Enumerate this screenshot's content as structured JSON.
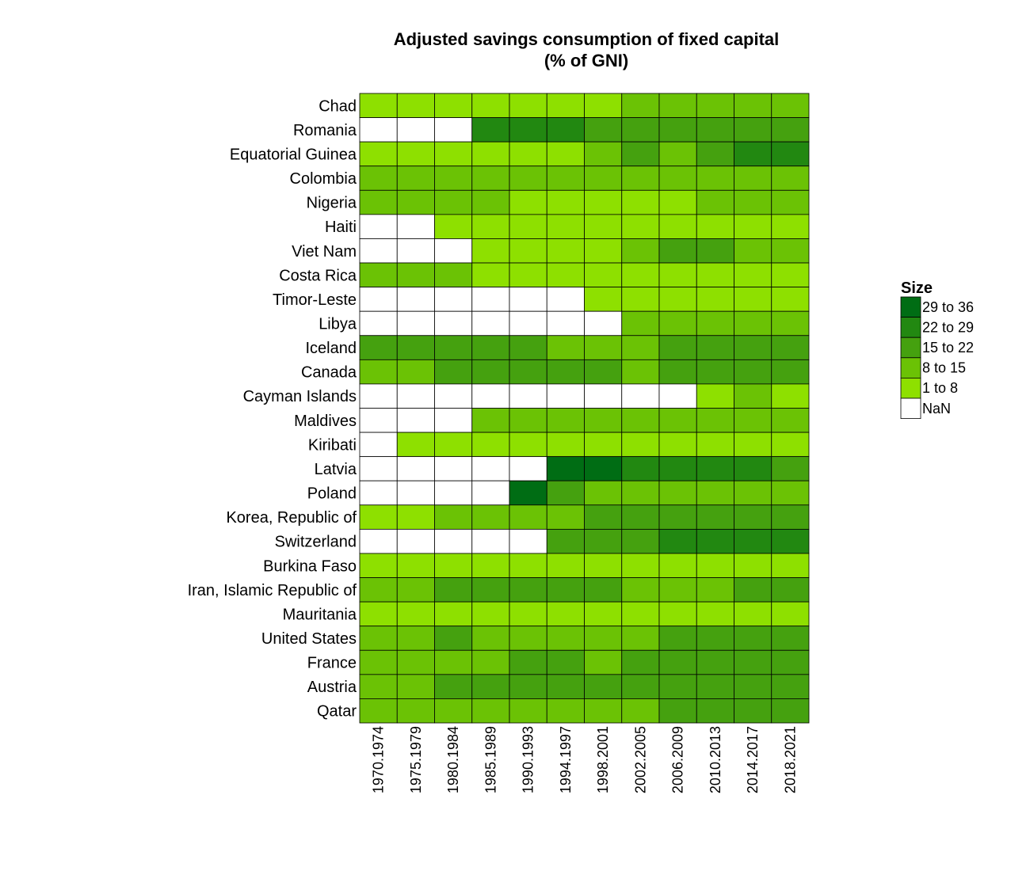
{
  "chart_data": {
    "type": "heatmap",
    "title": "Adjusted savings consumption of fixed capital",
    "subtitle": "(% of GNI)",
    "x_categories": [
      "1970.1974",
      "1975.1979",
      "1980.1984",
      "1985.1989",
      "1990.1993",
      "1994.1997",
      "1998.2001",
      "2002.2005",
      "2006.2009",
      "2010.2013",
      "2014.2017",
      "2018.2021"
    ],
    "y_categories": [
      "Chad",
      "Romania",
      "Equatorial Guinea",
      "Colombia",
      "Nigeria",
      "Haiti",
      "Viet Nam",
      "Costa Rica",
      "Timor-Leste",
      "Libya",
      "Iceland",
      "Canada",
      "Cayman Islands",
      "Maldives",
      "Kiribati",
      "Latvia",
      "Poland",
      "Korea, Republic of",
      "Switzerland",
      "Burkina Faso",
      "Iran, Islamic Republic of",
      "Mauritania",
      "United States",
      "France",
      "Austria",
      "Qatar"
    ],
    "values_class": [
      [
        1,
        1,
        1,
        1,
        1,
        1,
        1,
        2,
        2,
        2,
        2,
        2
      ],
      [
        null,
        null,
        null,
        4,
        4,
        4,
        3,
        3,
        3,
        3,
        3,
        3
      ],
      [
        1,
        1,
        1,
        1,
        1,
        1,
        2,
        3,
        2,
        3,
        4,
        4
      ],
      [
        2,
        2,
        2,
        2,
        2,
        2,
        2,
        2,
        2,
        2,
        2,
        2
      ],
      [
        2,
        2,
        2,
        2,
        1,
        1,
        1,
        1,
        1,
        2,
        2,
        2
      ],
      [
        null,
        null,
        1,
        1,
        1,
        1,
        1,
        1,
        1,
        1,
        1,
        1
      ],
      [
        null,
        null,
        null,
        1,
        1,
        1,
        1,
        2,
        3,
        3,
        2,
        2
      ],
      [
        2,
        2,
        2,
        1,
        1,
        1,
        1,
        1,
        1,
        1,
        1,
        1
      ],
      [
        null,
        null,
        null,
        null,
        null,
        null,
        1,
        1,
        1,
        1,
        1,
        1
      ],
      [
        null,
        null,
        null,
        null,
        null,
        null,
        null,
        2,
        2,
        2,
        2,
        2
      ],
      [
        3,
        3,
        3,
        3,
        3,
        2,
        2,
        2,
        3,
        3,
        3,
        3
      ],
      [
        2,
        2,
        3,
        3,
        3,
        3,
        3,
        2,
        3,
        3,
        3,
        3
      ],
      [
        null,
        null,
        null,
        null,
        null,
        null,
        null,
        null,
        null,
        1,
        2,
        1
      ],
      [
        null,
        null,
        null,
        2,
        2,
        2,
        2,
        2,
        2,
        2,
        2,
        2
      ],
      [
        null,
        1,
        1,
        1,
        1,
        1,
        1,
        1,
        1,
        1,
        1,
        1
      ],
      [
        null,
        null,
        null,
        null,
        null,
        5,
        5,
        4,
        4,
        4,
        4,
        3
      ],
      [
        null,
        null,
        null,
        null,
        5,
        3,
        2,
        2,
        2,
        2,
        2,
        2
      ],
      [
        1,
        1,
        2,
        2,
        2,
        2,
        3,
        3,
        3,
        3,
        3,
        3
      ],
      [
        null,
        null,
        null,
        null,
        null,
        3,
        3,
        3,
        4,
        4,
        4,
        4
      ],
      [
        1,
        1,
        1,
        1,
        1,
        1,
        1,
        1,
        1,
        1,
        1,
        1
      ],
      [
        2,
        2,
        3,
        3,
        3,
        3,
        3,
        2,
        2,
        2,
        3,
        3
      ],
      [
        1,
        1,
        1,
        1,
        1,
        1,
        1,
        1,
        1,
        1,
        1,
        1
      ],
      [
        2,
        2,
        3,
        2,
        2,
        2,
        2,
        2,
        3,
        3,
        3,
        3
      ],
      [
        2,
        2,
        2,
        2,
        3,
        3,
        2,
        3,
        3,
        3,
        3,
        3
      ],
      [
        2,
        2,
        3,
        3,
        3,
        3,
        3,
        3,
        3,
        3,
        3,
        3
      ],
      [
        2,
        2,
        2,
        2,
        2,
        2,
        2,
        2,
        3,
        3,
        3,
        3
      ]
    ],
    "legend": {
      "title": "Size",
      "position": "right",
      "items": [
        {
          "label": "29 to 36",
          "class": 5,
          "color": "#006d14"
        },
        {
          "label": "22 to 29",
          "class": 4,
          "color": "#228811"
        },
        {
          "label": "15 to 22",
          "class": 3,
          "color": "#45a10f"
        },
        {
          "label": "8 to 15",
          "class": 2,
          "color": "#6bc205"
        },
        {
          "label": "1 to 8",
          "class": 1,
          "color": "#8ee000"
        },
        {
          "label": "NaN",
          "class": null,
          "color": "#ffffff"
        }
      ]
    },
    "grid": false
  }
}
